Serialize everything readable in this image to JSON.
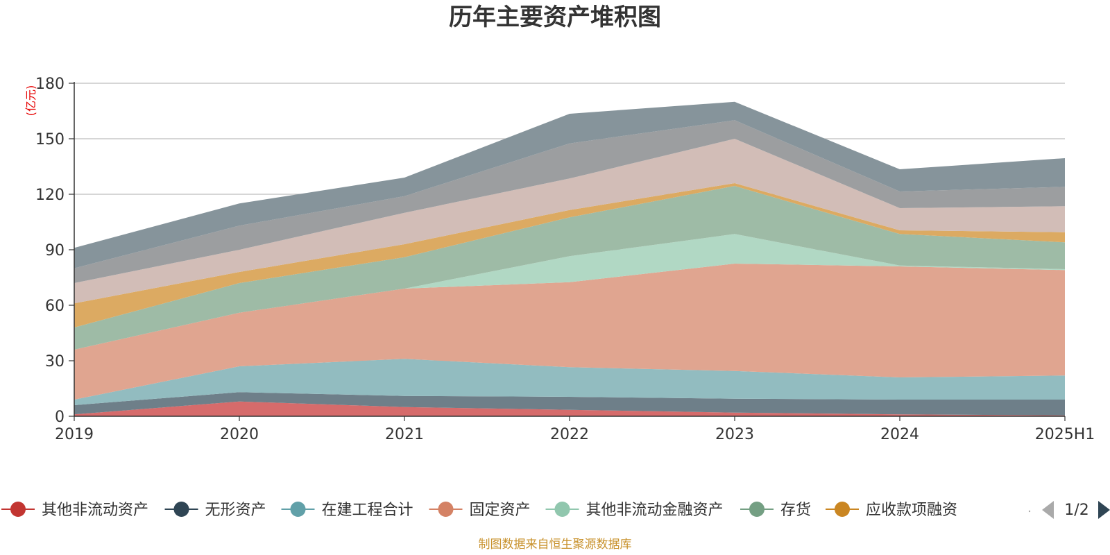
{
  "chart_data": {
    "type": "area",
    "stacked": true,
    "title": "历年主要资产堆积图",
    "ylabel": "(亿元)",
    "xlabel": "",
    "x": [
      "2019",
      "2020",
      "2021",
      "2022",
      "2023",
      "2024",
      "2025H1"
    ],
    "ylim": [
      0,
      180
    ],
    "yticks": [
      0,
      30,
      60,
      90,
      120,
      150,
      180
    ],
    "grid": true,
    "series": [
      {
        "name": "其他非流动资产",
        "color": "#c23531",
        "fill": "#d66b6b",
        "values": [
          1,
          8,
          5,
          3.5,
          2,
          1,
          0.5
        ],
        "legend": true
      },
      {
        "name": "无形资产",
        "color": "#2f4554",
        "fill": "#6e7f89",
        "values": [
          5,
          5,
          6,
          7,
          7.5,
          8,
          8.5
        ],
        "legend": true
      },
      {
        "name": "在建工程合计",
        "color": "#61a0a8",
        "fill": "#92bcc0",
        "values": [
          3,
          14,
          20,
          16,
          15,
          12,
          13
        ],
        "legend": true
      },
      {
        "name": "固定资产",
        "color": "#d48265",
        "fill": "#e0a590",
        "values": [
          27,
          29,
          38,
          46,
          58,
          60,
          57
        ],
        "legend": true
      },
      {
        "name": "其他非流动金融资产",
        "color": "#91c7ae",
        "fill": "#b1d8c4",
        "values": [
          0,
          0,
          0,
          14,
          16,
          0.5,
          0.5
        ],
        "legend": true
      },
      {
        "name": "存货",
        "color": "#749f83",
        "fill": "#9ebba6",
        "values": [
          12,
          16,
          17,
          21,
          26,
          17,
          14.5
        ],
        "legend": true
      },
      {
        "name": "应收款项融资",
        "color": "#ca8622",
        "fill": "#dcaa62",
        "values": [
          13,
          6,
          7,
          4,
          1.5,
          2,
          5.5
        ],
        "legend": true
      },
      {
        "name": "",
        "color": "#bda29a",
        "fill": "#d2bdb7",
        "values": [
          11,
          12,
          17,
          17,
          24,
          12,
          14
        ],
        "legend": false
      },
      {
        "name": "",
        "color": "#6e7074",
        "fill": "#9c9ea0",
        "values": [
          8,
          13,
          9,
          19,
          10,
          9,
          10.5
        ],
        "legend": false
      },
      {
        "name": "",
        "color": "#546570",
        "fill": "#86949b",
        "values": [
          11,
          12,
          10,
          16,
          10,
          12,
          15.5
        ],
        "legend": false
      }
    ],
    "legend": {
      "position": "bottom",
      "page": "1/2"
    }
  },
  "footer": {
    "source": "制图数据来自恒生聚源数据库"
  }
}
